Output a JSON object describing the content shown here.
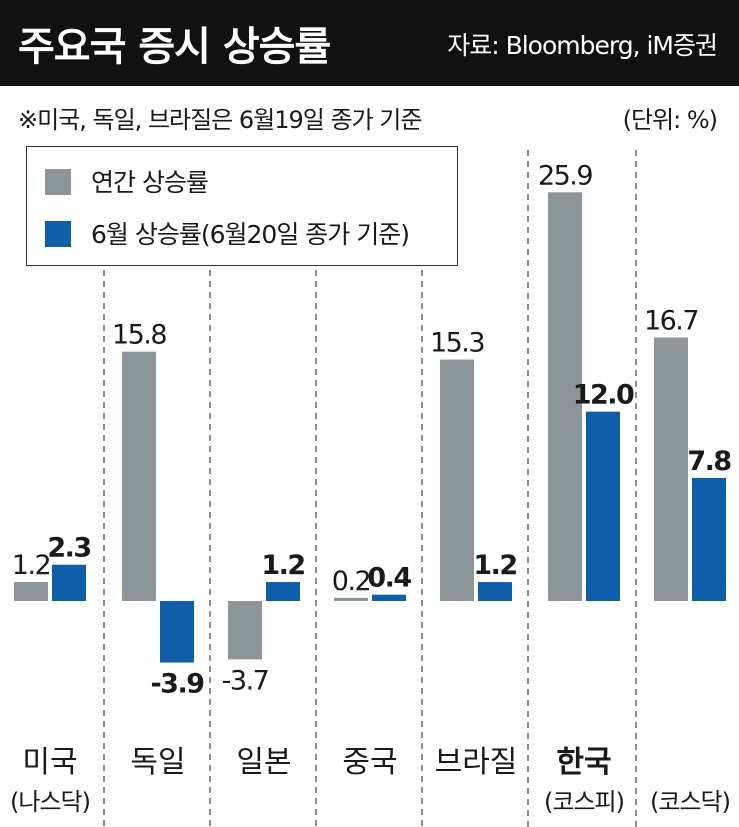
{
  "header": {
    "title": "주요국 증시 상승률",
    "source": "자료: Bloomberg, iM증권"
  },
  "note": "※미국, 독일, 브라질은 6월19일 종가 기준",
  "unit": "(단위: %)",
  "colors": {
    "annual": "#8c9597",
    "june": "#0f5ea8",
    "title_bg": "#111111"
  },
  "chart_data": {
    "type": "bar",
    "categories": [
      {
        "name": "미국",
        "sub": "(나스닥)",
        "bold": false
      },
      {
        "name": "독일",
        "sub": "",
        "bold": false
      },
      {
        "name": "일본",
        "sub": "",
        "bold": false
      },
      {
        "name": "중국",
        "sub": "",
        "bold": false
      },
      {
        "name": "브라질",
        "sub": "",
        "bold": false
      },
      {
        "name": "한국",
        "sub": "(코스피)",
        "bold": true
      },
      {
        "name": "",
        "sub": "(코스닥)",
        "bold": false
      }
    ],
    "series": [
      {
        "name": "연간 상승률",
        "values": [
          1.2,
          15.8,
          -3.7,
          0.2,
          15.3,
          25.9,
          16.7
        ],
        "labels": [
          "1.2",
          "15.8",
          "-3.7",
          "0.2",
          "15.3",
          "25.9",
          "16.7"
        ]
      },
      {
        "name": "6월 상승률(6월20일 종가 기준)",
        "values": [
          2.3,
          -3.9,
          1.2,
          0.4,
          1.2,
          12.0,
          7.8
        ],
        "labels": [
          "2.3",
          "-3.9",
          "1.2",
          "0.4",
          "1.2",
          "12.0",
          "7.8"
        ]
      }
    ],
    "ylim": [
      -5,
      28
    ],
    "legend_position": "top-left",
    "grid": false
  }
}
